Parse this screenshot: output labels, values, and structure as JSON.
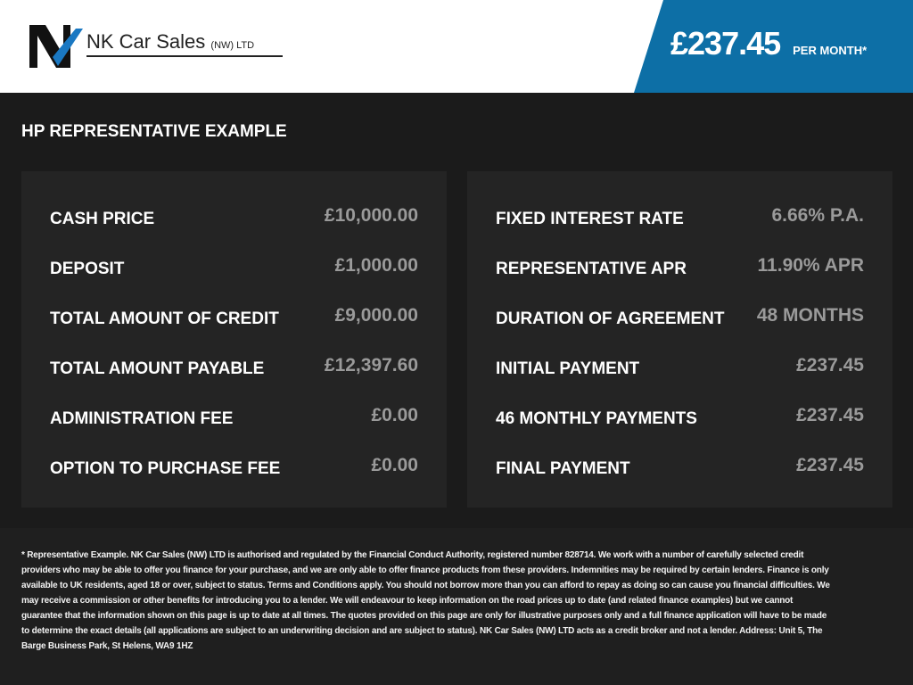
{
  "header": {
    "brand": "NK Car Sales",
    "brand_suffix": "(NW) LTD",
    "monthly_price": "£237.45",
    "per_month_label": "PER MONTH*",
    "accent": "#0d6fa6"
  },
  "title": "HP REPRESENTATIVE EXAMPLE",
  "left": [
    {
      "label": "CASH PRICE",
      "value": "£10,000.00"
    },
    {
      "label": "DEPOSIT",
      "value": "£1,000.00"
    },
    {
      "label": "TOTAL AMOUNT OF CREDIT",
      "value": "£9,000.00"
    },
    {
      "label": "TOTAL AMOUNT PAYABLE",
      "value": "£12,397.60"
    },
    {
      "label": "ADMINISTRATION FEE",
      "value": "£0.00"
    },
    {
      "label": "OPTION TO PURCHASE FEE",
      "value": "£0.00"
    }
  ],
  "right": [
    {
      "label": "FIXED INTEREST RATE",
      "value": "6.66% P.A."
    },
    {
      "label": "REPRESENTATIVE APR",
      "value": "11.90% APR"
    },
    {
      "label": "DURATION OF AGREEMENT",
      "value": "48 MONTHS"
    },
    {
      "label": "INITIAL PAYMENT",
      "value": "£237.45"
    },
    {
      "label": "46 MONTHLY PAYMENTS",
      "value": "£237.45"
    },
    {
      "label": "FINAL PAYMENT",
      "value": "£237.45"
    }
  ],
  "disclaimer": [
    "* Representative Example. NK Car Sales (NW) LTD is authorised and regulated by the Financial Conduct Authority, registered number 828714. We work with a number of carefully selected credit providers who may be",
    "able to offer you finance for your purchase, and we are only able to offer finance products from these providers. Indemnities may be required by certain lenders. Finance is only available to UK residents, aged",
    "18 or over, subject to status. Terms and Conditions apply. You should not borrow more than you can afford to repay as doing so can cause you financial difficulties. We may receive a commission or other benefits",
    "for introducing you to a lender. We will endeavour to keep information on the road prices up to date (and related finance examples) but we cannot guarantee that the information shown on this page is up to date",
    "at all times. The quotes provided on this page are only for illustrative purposes only and a full finance application will have to be made to determine the exact details (all applications are subject to an",
    "underwriting decision and are subject to status). NK Car Sales (NW) LTD acts as a credit broker and not a lender. Address: Unit 5, The Barge Business Park, St Helens, WA9 1HZ"
  ]
}
